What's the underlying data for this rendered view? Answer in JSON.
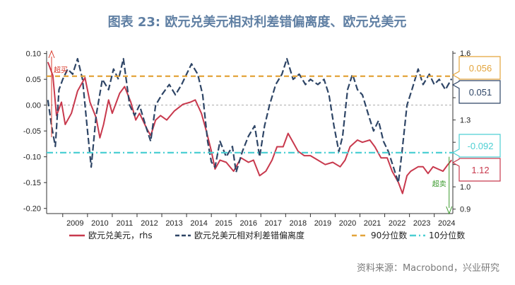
{
  "chart_data": {
    "type": "line",
    "title": "图表 23: 欧元兑美元相对利差错偏离度、欧元兑美元",
    "x_axis": {
      "range": [
        2008.35,
        2024.75
      ],
      "ticks": [
        "2009",
        "2010",
        "2011",
        "2012",
        "2013",
        "2014",
        "2015",
        "2016",
        "2017",
        "2018",
        "2019",
        "2020",
        "2021",
        "2022",
        "2023",
        "2024"
      ]
    },
    "y_left": {
      "range": [
        -0.21,
        0.105
      ],
      "ticks": [
        "0.10",
        "0.05",
        "0.00",
        "-0.05",
        "-0.10",
        "-0.15",
        "-0.20"
      ]
    },
    "y_right": {
      "range": [
        0.88,
        1.61
      ],
      "ticks": [
        "1.6",
        "1.5",
        "1.4",
        "1.3",
        "1.2",
        "1.1",
        "1.0",
        "0.9"
      ]
    },
    "series": [
      {
        "name": "欧元兑美元，rhs",
        "axis": "right",
        "color": "#c8394d",
        "style": "solid",
        "points": [
          [
            2008.4,
            1.56
          ],
          [
            2008.6,
            1.5
          ],
          [
            2008.75,
            1.32
          ],
          [
            2008.95,
            1.38
          ],
          [
            2009.1,
            1.28
          ],
          [
            2009.35,
            1.33
          ],
          [
            2009.6,
            1.43
          ],
          [
            2009.9,
            1.49
          ],
          [
            2010.1,
            1.38
          ],
          [
            2010.35,
            1.31
          ],
          [
            2010.5,
            1.22
          ],
          [
            2010.65,
            1.28
          ],
          [
            2010.85,
            1.39
          ],
          [
            2011.0,
            1.33
          ],
          [
            2011.3,
            1.42
          ],
          [
            2011.5,
            1.45
          ],
          [
            2011.75,
            1.38
          ],
          [
            2011.95,
            1.3
          ],
          [
            2012.1,
            1.33
          ],
          [
            2012.4,
            1.26
          ],
          [
            2012.55,
            1.23
          ],
          [
            2012.75,
            1.3
          ],
          [
            2012.95,
            1.32
          ],
          [
            2013.2,
            1.3
          ],
          [
            2013.5,
            1.34
          ],
          [
            2013.85,
            1.37
          ],
          [
            2014.15,
            1.38
          ],
          [
            2014.35,
            1.39
          ],
          [
            2014.6,
            1.33
          ],
          [
            2014.8,
            1.25
          ],
          [
            2015.0,
            1.16
          ],
          [
            2015.15,
            1.08
          ],
          [
            2015.35,
            1.12
          ],
          [
            2015.6,
            1.11
          ],
          [
            2015.9,
            1.07
          ],
          [
            2016.2,
            1.13
          ],
          [
            2016.5,
            1.11
          ],
          [
            2016.7,
            1.12
          ],
          [
            2016.95,
            1.05
          ],
          [
            2017.2,
            1.07
          ],
          [
            2017.45,
            1.12
          ],
          [
            2017.65,
            1.18
          ],
          [
            2017.9,
            1.18
          ],
          [
            2018.1,
            1.24
          ],
          [
            2018.3,
            1.2
          ],
          [
            2018.5,
            1.16
          ],
          [
            2018.75,
            1.14
          ],
          [
            2019.0,
            1.14
          ],
          [
            2019.3,
            1.12
          ],
          [
            2019.6,
            1.1
          ],
          [
            2019.9,
            1.11
          ],
          [
            2020.2,
            1.09
          ],
          [
            2020.4,
            1.12
          ],
          [
            2020.6,
            1.18
          ],
          [
            2020.9,
            1.21
          ],
          [
            2021.1,
            1.2
          ],
          [
            2021.4,
            1.21
          ],
          [
            2021.6,
            1.18
          ],
          [
            2021.85,
            1.13
          ],
          [
            2022.1,
            1.13
          ],
          [
            2022.3,
            1.07
          ],
          [
            2022.55,
            1.02
          ],
          [
            2022.72,
            0.97
          ],
          [
            2022.9,
            1.05
          ],
          [
            2023.05,
            1.07
          ],
          [
            2023.35,
            1.09
          ],
          [
            2023.55,
            1.09
          ],
          [
            2023.75,
            1.06
          ],
          [
            2023.95,
            1.09
          ],
          [
            2024.15,
            1.08
          ],
          [
            2024.35,
            1.07
          ],
          [
            2024.55,
            1.1
          ],
          [
            2024.7,
            1.12
          ]
        ]
      },
      {
        "name": "欧元兑美元相对利差错偏离度",
        "axis": "left",
        "color": "#2e4566",
        "style": "longdash",
        "points": [
          [
            2008.4,
            0.01
          ],
          [
            2008.55,
            -0.04
          ],
          [
            2008.7,
            -0.08
          ],
          [
            2008.85,
            0.03
          ],
          [
            2009.0,
            0.05
          ],
          [
            2009.2,
            0.07
          ],
          [
            2009.4,
            0.06
          ],
          [
            2009.6,
            0.09
          ],
          [
            2009.8,
            0.05
          ],
          [
            2010.0,
            -0.05
          ],
          [
            2010.15,
            -0.12
          ],
          [
            2010.35,
            -0.02
          ],
          [
            2010.6,
            0.05
          ],
          [
            2010.85,
            0.03
          ],
          [
            2011.05,
            0.07
          ],
          [
            2011.25,
            0.05
          ],
          [
            2011.45,
            0.09
          ],
          [
            2011.7,
            0.0
          ],
          [
            2011.9,
            -0.02
          ],
          [
            2012.1,
            0.0
          ],
          [
            2012.35,
            -0.04
          ],
          [
            2012.55,
            -0.07
          ],
          [
            2012.75,
            0.0
          ],
          [
            2013.0,
            0.02
          ],
          [
            2013.3,
            0.04
          ],
          [
            2013.55,
            0.02
          ],
          [
            2013.8,
            0.04
          ],
          [
            2014.0,
            0.06
          ],
          [
            2014.2,
            0.08
          ],
          [
            2014.45,
            0.06
          ],
          [
            2014.65,
            0.02
          ],
          [
            2014.85,
            -0.07
          ],
          [
            2015.0,
            -0.11
          ],
          [
            2015.15,
            -0.12
          ],
          [
            2015.35,
            -0.07
          ],
          [
            2015.6,
            -0.1
          ],
          [
            2015.85,
            -0.08
          ],
          [
            2016.0,
            -0.13
          ],
          [
            2016.25,
            -0.09
          ],
          [
            2016.5,
            -0.06
          ],
          [
            2016.75,
            -0.04
          ],
          [
            2016.95,
            -0.1
          ],
          [
            2017.15,
            -0.04
          ],
          [
            2017.35,
            0.0
          ],
          [
            2017.6,
            0.04
          ],
          [
            2017.85,
            0.06
          ],
          [
            2018.05,
            0.09
          ],
          [
            2018.3,
            0.05
          ],
          [
            2018.55,
            0.06
          ],
          [
            2018.8,
            0.04
          ],
          [
            2019.0,
            0.05
          ],
          [
            2019.3,
            0.04
          ],
          [
            2019.55,
            0.05
          ],
          [
            2019.75,
            0.02
          ],
          [
            2019.95,
            -0.04
          ],
          [
            2020.15,
            -0.09
          ],
          [
            2020.3,
            -0.06
          ],
          [
            2020.5,
            0.03
          ],
          [
            2020.7,
            0.06
          ],
          [
            2020.9,
            0.03
          ],
          [
            2021.1,
            0.02
          ],
          [
            2021.35,
            -0.02
          ],
          [
            2021.55,
            -0.05
          ],
          [
            2021.75,
            -0.03
          ],
          [
            2021.95,
            -0.07
          ],
          [
            2022.15,
            -0.09
          ],
          [
            2022.35,
            -0.12
          ],
          [
            2022.55,
            -0.15
          ],
          [
            2022.7,
            -0.09
          ],
          [
            2022.9,
            0.0
          ],
          [
            2023.1,
            0.03
          ],
          [
            2023.35,
            0.07
          ],
          [
            2023.55,
            0.04
          ],
          [
            2023.8,
            0.06
          ],
          [
            2024.0,
            0.04
          ],
          [
            2024.2,
            0.05
          ],
          [
            2024.45,
            0.03
          ],
          [
            2024.7,
            0.051
          ]
        ]
      },
      {
        "name": "90分位数",
        "axis": "left",
        "color": "#e3a43b",
        "style": "dash",
        "value": 0.056
      },
      {
        "name": "10分位数",
        "axis": "left",
        "color": "#4dcfd3",
        "style": "dashdot",
        "value": -0.092
      }
    ],
    "zero_line": {
      "axis": "left",
      "value": 0.0,
      "color": "#aaaaaa"
    },
    "callouts": [
      {
        "text": "0.056",
        "color": "#e3a43b",
        "axis": "left",
        "value": 0.056
      },
      {
        "text": "0.051",
        "color": "#2e4566",
        "axis": "left",
        "value": 0.051
      },
      {
        "text": "-0.092",
        "color": "#4dcfd3",
        "axis": "left",
        "value": -0.092
      },
      {
        "text": "1.12",
        "color": "#c8394d",
        "axis": "right",
        "value": 1.12
      }
    ],
    "annotations": [
      {
        "text": "超买",
        "color": "#d93a2b",
        "arrow": "up",
        "x": 2008.55
      },
      {
        "text": "超卖",
        "color": "#3a9a2c",
        "arrow": "down",
        "x": 2024.6
      }
    ],
    "legend": {
      "position": "bottom"
    }
  },
  "source": "资料来源：Macrobond，兴业研究"
}
